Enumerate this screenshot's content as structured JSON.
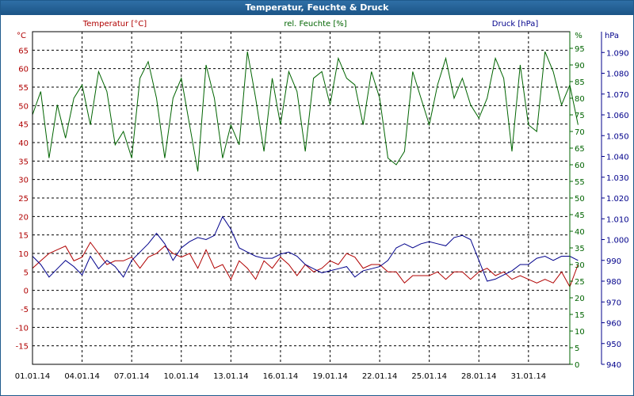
{
  "window": {
    "title": "Temperatur, Feuchte & Druck"
  },
  "colors": {
    "temperature": "#b00000",
    "humidity": "#006400",
    "pressure": "#00008b",
    "grid": "#000000",
    "titlebar": "#1b5486"
  },
  "chart_data": {
    "type": "line",
    "title": "Temperatur, Feuchte & Druck",
    "grid": true,
    "x_ticks": [
      "01.01.14",
      "04.01.14",
      "07.01.14",
      "10.01.14",
      "13.01.14",
      "16.01.14",
      "19.01.14",
      "22.01.14",
      "25.01.14",
      "28.01.14",
      "31.01.14"
    ],
    "axes": {
      "temperature": {
        "unit": "°C",
        "label": "Temperatur [°C]",
        "range": [
          -20,
          70
        ],
        "ticks": [
          -15,
          -10,
          -5,
          0,
          5,
          10,
          15,
          20,
          25,
          30,
          35,
          40,
          45,
          50,
          55,
          60,
          65
        ]
      },
      "humidity": {
        "unit": "%",
        "label": "rel. Feuchte [%]",
        "range": [
          0,
          100
        ],
        "ticks": [
          0,
          5,
          10,
          15,
          20,
          25,
          30,
          35,
          40,
          45,
          50,
          55,
          60,
          65,
          70,
          75,
          80,
          85,
          90,
          95
        ]
      },
      "pressure": {
        "unit": "hPa",
        "label": "Druck [hPa]",
        "range": [
          940,
          1100
        ],
        "ticks": [
          "940",
          "950",
          "960",
          "970",
          "980",
          "990",
          "1.000",
          "1.010",
          "1.020",
          "1.030",
          "1.040",
          "1.050",
          "1.060",
          "1.070",
          "1.080",
          "1.090"
        ]
      }
    },
    "series": [
      {
        "name": "Temperatur [°C]",
        "axis": "temperature",
        "color": "#b00000",
        "x": [
          0,
          0.5,
          1,
          1.5,
          2,
          2.5,
          3,
          3.5,
          4,
          4.5,
          5,
          5.5,
          6,
          6.5,
          7,
          7.5,
          8,
          8.5,
          9,
          9.5,
          10,
          10.5,
          11,
          11.5,
          12,
          12.5,
          13,
          13.5,
          14,
          14.5,
          15,
          15.5,
          16,
          16.5,
          17,
          17.5,
          18,
          18.5,
          19,
          19.5,
          20,
          20.5,
          21,
          21.5,
          22,
          22.5,
          23,
          23.5,
          24,
          24.5,
          25,
          25.5,
          26,
          26.5,
          27,
          27.5,
          28,
          28.5,
          29,
          29.5,
          30,
          30.5,
          31,
          31.5,
          32,
          32.5,
          33
        ],
        "values": [
          6,
          8,
          10,
          11,
          12,
          8,
          9,
          13,
          10,
          7,
          8,
          8,
          9,
          6,
          9,
          10,
          12,
          10,
          9,
          10,
          6,
          11,
          6,
          7,
          3,
          8,
          6,
          3,
          8,
          6,
          9,
          7,
          4,
          7,
          5,
          6,
          8,
          7,
          10,
          9,
          6,
          7,
          7,
          5,
          5,
          2,
          4,
          4,
          4,
          5,
          3,
          5,
          5,
          3,
          5,
          6,
          4,
          5,
          3,
          4,
          3,
          2,
          3,
          2,
          5,
          1,
          7
        ]
      },
      {
        "name": "rel. Feuchte [%]",
        "axis": "humidity",
        "color": "#006400",
        "x": [
          0,
          0.5,
          1,
          1.5,
          2,
          2.5,
          3,
          3.5,
          4,
          4.5,
          5,
          5.5,
          6,
          6.5,
          7,
          7.5,
          8,
          8.5,
          9,
          9.5,
          10,
          10.5,
          11,
          11.5,
          12,
          12.5,
          13,
          13.5,
          14,
          14.5,
          15,
          15.5,
          16,
          16.5,
          17,
          17.5,
          18,
          18.5,
          19,
          19.5,
          20,
          20.5,
          21,
          21.5,
          22,
          22.5,
          23,
          23.5,
          24,
          24.5,
          25,
          25.5,
          26,
          26.5,
          27,
          27.5,
          28,
          28.5,
          29,
          29.5,
          30,
          30.5,
          31,
          31.5,
          32,
          32.5,
          33
        ],
        "values": [
          75,
          82,
          62,
          78,
          68,
          80,
          84,
          72,
          88,
          82,
          66,
          70,
          62,
          86,
          91,
          80,
          62,
          80,
          86,
          72,
          58,
          90,
          80,
          62,
          72,
          66,
          94,
          80,
          64,
          86,
          72,
          88,
          82,
          64,
          86,
          88,
          78,
          92,
          86,
          84,
          72,
          88,
          80,
          62,
          60,
          64,
          88,
          80,
          72,
          84,
          92,
          80,
          86,
          78,
          74,
          80,
          92,
          86,
          64,
          90,
          72,
          70,
          94,
          88,
          78,
          84,
          72
        ]
      },
      {
        "name": "Druck [hPa]",
        "axis": "pressure",
        "color": "#00008b",
        "x": [
          0,
          0.5,
          1,
          1.5,
          2,
          2.5,
          3,
          3.5,
          4,
          4.5,
          5,
          5.5,
          6,
          6.5,
          7,
          7.5,
          8,
          8.5,
          9,
          9.5,
          10,
          10.5,
          11,
          11.5,
          12,
          12.5,
          13,
          13.5,
          14,
          14.5,
          15,
          15.5,
          16,
          16.5,
          17,
          17.5,
          18,
          18.5,
          19,
          19.5,
          20,
          20.5,
          21,
          21.5,
          22,
          22.5,
          23,
          23.5,
          24,
          24.5,
          25,
          25.5,
          26,
          26.5,
          27,
          27.5,
          28,
          28.5,
          29,
          29.5,
          30,
          30.5,
          31,
          31.5,
          32,
          32.5,
          33
        ],
        "values": [
          992,
          988,
          982,
          986,
          990,
          987,
          983,
          992,
          986,
          990,
          987,
          982,
          990,
          994,
          998,
          1003,
          998,
          990,
          996,
          999,
          1001,
          1000,
          1002,
          1011,
          1005,
          996,
          994,
          992,
          991,
          991,
          993,
          994,
          992,
          988,
          986,
          984,
          985,
          986,
          987,
          982,
          985,
          986,
          987,
          990,
          996,
          998,
          996,
          998,
          999,
          998,
          997,
          1001,
          1002,
          1000,
          990,
          980,
          981,
          983,
          985,
          988,
          988,
          991,
          992,
          990,
          992,
          992,
          990
        ]
      }
    ]
  }
}
